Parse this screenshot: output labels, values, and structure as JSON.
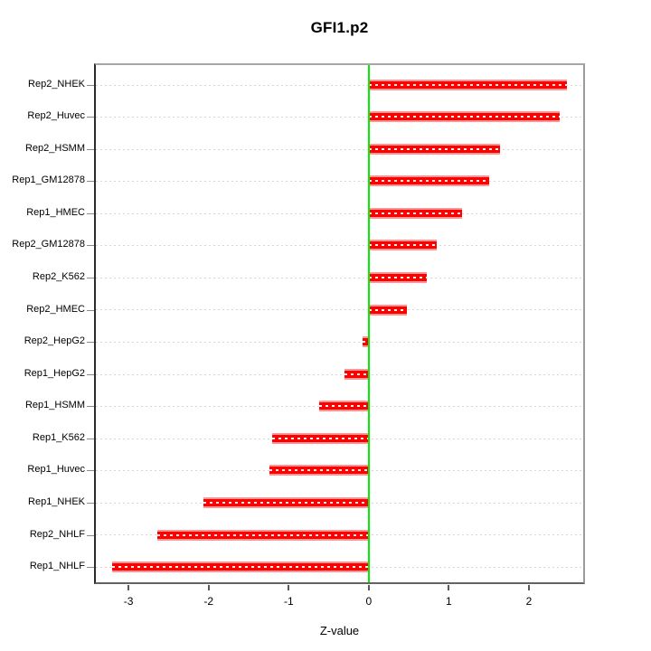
{
  "figure": {
    "title": "GFI1.p2"
  },
  "chart_data": {
    "type": "bar",
    "orientation": "horizontal",
    "title": "GFI1.p2",
    "xlabel": "Z-value",
    "categories": [
      "Rep2_NHEK",
      "Rep2_Huvec",
      "Rep2_HSMM",
      "Rep1_GM12878",
      "Rep1_HMEC",
      "Rep2_GM12878",
      "Rep2_K562",
      "Rep2_HMEC",
      "Rep2_HepG2",
      "Rep1_HepG2",
      "Rep1_HSMM",
      "Rep1_K562",
      "Rep1_Huvec",
      "Rep1_NHEK",
      "Rep2_NHLF",
      "Rep1_NHLF"
    ],
    "values": [
      2.47,
      2.39,
      1.64,
      1.5,
      1.17,
      0.85,
      0.73,
      0.48,
      -0.08,
      -0.3,
      -0.62,
      -1.21,
      -1.24,
      -2.07,
      -2.64,
      -3.2
    ],
    "xlim": [
      -3.43,
      2.7
    ],
    "xticks": [
      -3,
      -2,
      -1,
      0,
      1,
      2
    ],
    "zero_line": 0,
    "grid": "dotted-horizontal-row-lines",
    "legend_position": "none",
    "colors": {
      "bar": "#ff0000",
      "bar_edge": "#ff9595",
      "bar_dash": "#ffffff",
      "zero_line": "#00ee00",
      "grid_line": "#d6d6d6",
      "box_border": "#8c8c8c",
      "text": "#000000"
    }
  }
}
